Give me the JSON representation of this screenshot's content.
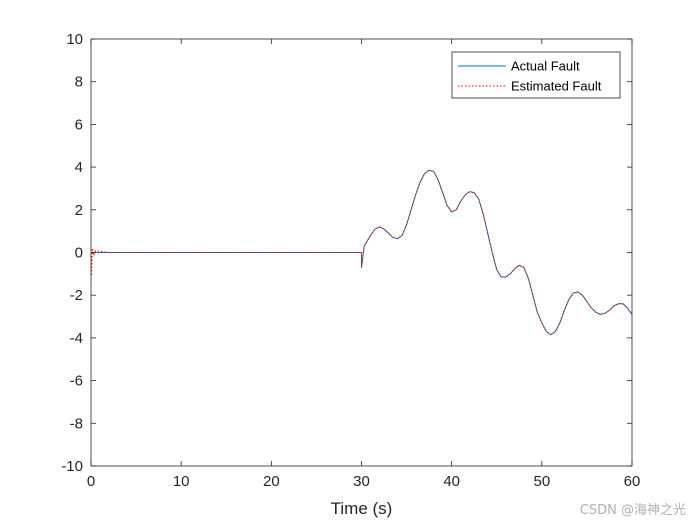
{
  "chart_data": {
    "type": "line",
    "title": "",
    "xlabel": "Time (s)",
    "ylabel": "",
    "xlim": [
      0,
      60
    ],
    "ylim": [
      -10,
      10
    ],
    "xticks": [
      0,
      10,
      20,
      30,
      40,
      50,
      60
    ],
    "yticks": [
      10,
      8,
      6,
      4,
      2,
      0,
      -2,
      -4,
      -6,
      -8,
      -10
    ],
    "grid": false,
    "legend_position": "top-right",
    "series": [
      {
        "name": "Actual Fault",
        "color": "#0072bd",
        "style": "solid",
        "x": [
          0,
          30,
          30,
          30.3,
          31,
          31.5,
          32,
          32.5,
          33,
          33.5,
          34,
          34.5,
          35,
          35.5,
          36,
          36.5,
          37,
          37.5,
          38,
          38.5,
          39,
          39.5,
          40,
          40.5,
          41,
          41.5,
          42,
          42.5,
          43,
          43.5,
          44,
          44.5,
          45,
          45.5,
          46,
          46.5,
          47,
          47.5,
          48,
          48.5,
          49,
          49.5,
          50,
          50.5,
          51,
          51.5,
          52,
          52.5,
          53,
          53.5,
          54,
          54.5,
          55,
          55.5,
          56,
          56.5,
          57,
          57.5,
          58,
          58.5,
          59,
          59.5,
          60
        ],
        "y": [
          0,
          0,
          -0.7,
          0.3,
          0.8,
          1.1,
          1.2,
          1.1,
          0.9,
          0.7,
          0.65,
          0.8,
          1.3,
          2.0,
          2.7,
          3.3,
          3.7,
          3.85,
          3.8,
          3.4,
          2.8,
          2.2,
          1.9,
          2.0,
          2.4,
          2.7,
          2.85,
          2.8,
          2.5,
          1.8,
          0.9,
          0.0,
          -0.8,
          -1.15,
          -1.15,
          -1.0,
          -0.75,
          -0.6,
          -0.7,
          -1.2,
          -2.0,
          -2.8,
          -3.3,
          -3.7,
          -3.85,
          -3.7,
          -3.3,
          -2.7,
          -2.2,
          -1.9,
          -1.85,
          -2.0,
          -2.3,
          -2.6,
          -2.8,
          -2.9,
          -2.85,
          -2.7,
          -2.5,
          -2.4,
          -2.4,
          -2.6,
          -2.9
        ]
      },
      {
        "name": "Estimated Fault",
        "color": "#ff0000",
        "style": "dotted",
        "x": [
          0,
          0.05,
          0.15,
          0.3,
          0.5,
          1.0,
          2.0,
          30,
          30,
          30.3,
          31,
          31.5,
          32,
          32.5,
          33,
          33.5,
          34,
          34.5,
          35,
          35.5,
          36,
          36.5,
          37,
          37.5,
          38,
          38.5,
          39,
          39.5,
          40,
          40.5,
          41,
          41.5,
          42,
          42.5,
          43,
          43.5,
          44,
          44.5,
          45,
          45.5,
          46,
          46.5,
          47,
          47.5,
          48,
          48.5,
          49,
          49.5,
          50,
          50.5,
          51,
          51.5,
          52,
          52.5,
          53,
          53.5,
          54,
          54.5,
          55,
          55.5,
          56,
          56.5,
          57,
          57.5,
          58,
          58.5,
          59,
          59.5,
          60
        ],
        "y": [
          0,
          -1.1,
          0.2,
          -0.15,
          0.1,
          0.05,
          0.0,
          0,
          -0.7,
          0.3,
          0.8,
          1.1,
          1.2,
          1.1,
          0.9,
          0.7,
          0.65,
          0.8,
          1.3,
          2.0,
          2.7,
          3.3,
          3.7,
          3.85,
          3.8,
          3.4,
          2.8,
          2.2,
          1.9,
          2.0,
          2.4,
          2.7,
          2.85,
          2.8,
          2.5,
          1.8,
          0.9,
          0.0,
          -0.8,
          -1.15,
          -1.15,
          -1.0,
          -0.75,
          -0.6,
          -0.7,
          -1.2,
          -2.0,
          -2.8,
          -3.3,
          -3.7,
          -3.85,
          -3.7,
          -3.3,
          -2.7,
          -2.2,
          -1.9,
          -1.85,
          -2.0,
          -2.3,
          -2.6,
          -2.8,
          -2.9,
          -2.85,
          -2.7,
          -2.5,
          -2.4,
          -2.4,
          -2.6,
          -2.9
        ]
      }
    ]
  },
  "legend": {
    "items": [
      {
        "label": "Actual Fault"
      },
      {
        "label": "Estimated Fault"
      }
    ]
  },
  "watermark": {
    "text": "CSDN @海神之光"
  }
}
